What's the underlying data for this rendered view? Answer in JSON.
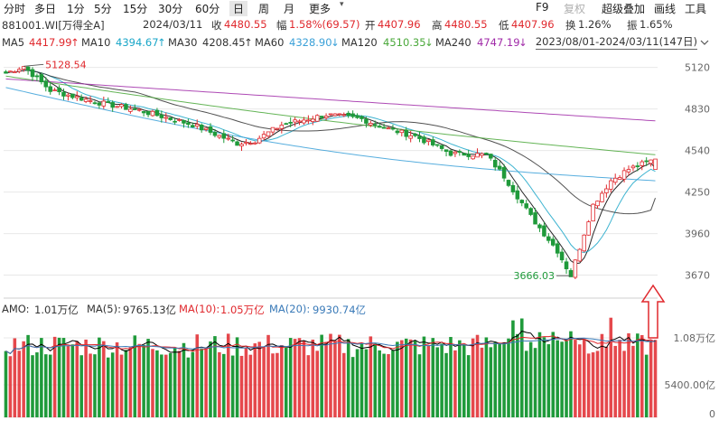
{
  "toolbar": {
    "periods": [
      "分时",
      "多日",
      "1分",
      "5分",
      "15分",
      "30分",
      "60分",
      "日",
      "周",
      "月",
      "更多"
    ],
    "active_period": "日",
    "right_items": [
      "F9",
      "复权",
      "超级叠加",
      "画线",
      "工具"
    ],
    "dropdown_icon": "chevron-down-icon"
  },
  "info": {
    "code": "881001.WI[万得全A]",
    "date": "2024/03/11",
    "close_label": "收",
    "close_value": "4480.55",
    "change_label": "幅",
    "change_value": "1.58%(69.57)",
    "open_label": "开",
    "open_value": "4407.96",
    "high_label": "高",
    "high_value": "4480.55",
    "low_label": "低",
    "low_value": "4407.96",
    "turnover_label": "换",
    "turnover_value": "1.26%",
    "amplitude_label": "振",
    "amplitude_value": "1.65%"
  },
  "ma": {
    "items": [
      {
        "label": "MA5",
        "value": "4417.99",
        "arrow": "↑",
        "color": "#000000"
      },
      {
        "label": "MA10",
        "value": "4394.67",
        "arrow": "↑",
        "color": "#1aa6c8"
      },
      {
        "label": "MA30",
        "value": "4208.45",
        "arrow": "↑",
        "color": "#333333"
      },
      {
        "label": "MA60",
        "value": "4328.90",
        "arrow": "↓",
        "color": "#3aa0d8"
      },
      {
        "label": "MA120",
        "value": "4510.35",
        "arrow": "↓",
        "color": "#4aa83a"
      },
      {
        "label": "MA240",
        "value": "4747.19",
        "arrow": "↓",
        "color": "#a02aa8"
      }
    ],
    "range": "2023/08/01-2024/03/11(147日)"
  },
  "volume": {
    "amo_label": "AMO:",
    "amo_value": "1.01万亿",
    "ma5_label": "MA(5):",
    "ma5_value": "9765.13亿",
    "ma10_label": "MA(10):",
    "ma10_value": "1.05万亿",
    "ma20_label": "MA(20):",
    "ma20_value": "9930.74亿"
  },
  "colors": {
    "up": "#e0282d",
    "down": "#1f9a3a",
    "grid": "#e8e8e8",
    "arrow": "#e0282d"
  },
  "chart_data": [
    {
      "type": "candlestick",
      "title": "881001.WI[万得全A]",
      "ylim": [
        3666.03,
        5128.54
      ],
      "y_ticks": [
        "5120",
        "4830",
        "4540",
        "4250",
        "3960",
        "3670"
      ],
      "annotations": [
        {
          "text": "5128.54",
          "note": "period high"
        },
        {
          "text": "3666.03",
          "note": "period low"
        }
      ],
      "series_ma": [
        {
          "name": "MA5",
          "last": 4417.99
        },
        {
          "name": "MA10",
          "last": 4394.67
        },
        {
          "name": "MA30",
          "last": 4208.45
        },
        {
          "name": "MA60",
          "last": 4328.9
        },
        {
          "name": "MA120",
          "last": 4510.35
        },
        {
          "name": "MA240",
          "last": 4747.19
        }
      ],
      "last_bar": {
        "open": 4407.96,
        "high": 4480.55,
        "low": 4407.96,
        "close": 4480.55
      }
    },
    {
      "type": "bar",
      "title": "AMO",
      "y_ticks": [
        "1.08万亿",
        "5400.00亿",
        "0"
      ],
      "last_value": "1.01万亿"
    }
  ]
}
